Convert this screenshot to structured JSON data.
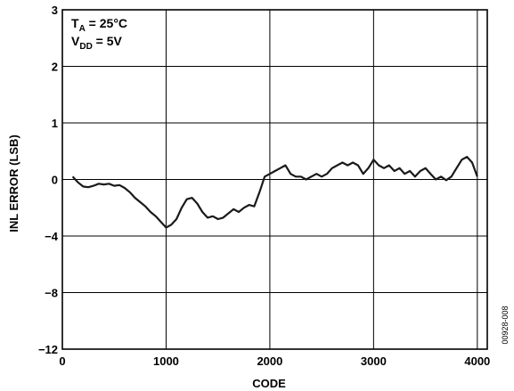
{
  "chart_data": {
    "type": "line",
    "xlabel": "CODE",
    "ylabel": "INL ERROR (LSB)",
    "xlim": [
      0,
      4096
    ],
    "x_ticks": [
      0,
      1000,
      2000,
      3000,
      4000
    ],
    "x_tick_labels": [
      "0",
      "1000",
      "2000",
      "3000",
      "4000"
    ],
    "y_ticks": [
      3,
      2,
      1,
      0,
      -4,
      -8,
      -12
    ],
    "y_tick_labels": [
      "3",
      "2",
      "1",
      "0",
      "−4",
      "−8",
      "−12"
    ],
    "grid": true,
    "annotations": {
      "temperature": {
        "main": "T",
        "sub": "A",
        "rest": " = 25°C"
      },
      "supply": {
        "main": "V",
        "sub": "DD",
        "rest": " = 5V"
      }
    },
    "figure_id": "00928-008",
    "series": [
      {
        "color": "#1a1a1a",
        "x": [
          100,
          150,
          200,
          250,
          300,
          350,
          400,
          450,
          500,
          550,
          600,
          650,
          700,
          750,
          800,
          850,
          900,
          950,
          1000,
          1050,
          1100,
          1150,
          1200,
          1250,
          1300,
          1350,
          1400,
          1450,
          1500,
          1550,
          1600,
          1650,
          1700,
          1750,
          1800,
          1850,
          1900,
          1950,
          2000,
          2050,
          2100,
          2150,
          2200,
          2250,
          2300,
          2350,
          2400,
          2450,
          2500,
          2550,
          2600,
          2650,
          2700,
          2750,
          2800,
          2850,
          2900,
          2950,
          3000,
          3050,
          3100,
          3150,
          3200,
          3250,
          3300,
          3350,
          3400,
          3450,
          3500,
          3550,
          3600,
          3650,
          3700,
          3750,
          3800,
          3850,
          3900,
          3950,
          4000
        ],
        "y": [
          0.05,
          -0.2,
          -0.5,
          -0.55,
          -0.45,
          -0.3,
          -0.35,
          -0.3,
          -0.45,
          -0.4,
          -0.6,
          -0.9,
          -1.3,
          -1.6,
          -1.9,
          -2.3,
          -2.6,
          -3.0,
          -3.4,
          -3.2,
          -2.8,
          -2.0,
          -1.4,
          -1.3,
          -1.7,
          -2.3,
          -2.7,
          -2.6,
          -2.8,
          -2.7,
          -2.4,
          -2.1,
          -2.3,
          -2.0,
          -1.8,
          -1.9,
          -0.9,
          0.05,
          0.1,
          0.15,
          0.2,
          0.25,
          0.1,
          0.05,
          0.05,
          0.0,
          0.05,
          0.1,
          0.05,
          0.1,
          0.2,
          0.25,
          0.3,
          0.25,
          0.3,
          0.25,
          0.1,
          0.2,
          0.35,
          0.25,
          0.2,
          0.25,
          0.15,
          0.2,
          0.1,
          0.15,
          0.05,
          0.15,
          0.2,
          0.1,
          0.0,
          0.05,
          -0.05,
          0.05,
          0.2,
          0.35,
          0.4,
          0.3,
          0.05
        ]
      }
    ]
  }
}
